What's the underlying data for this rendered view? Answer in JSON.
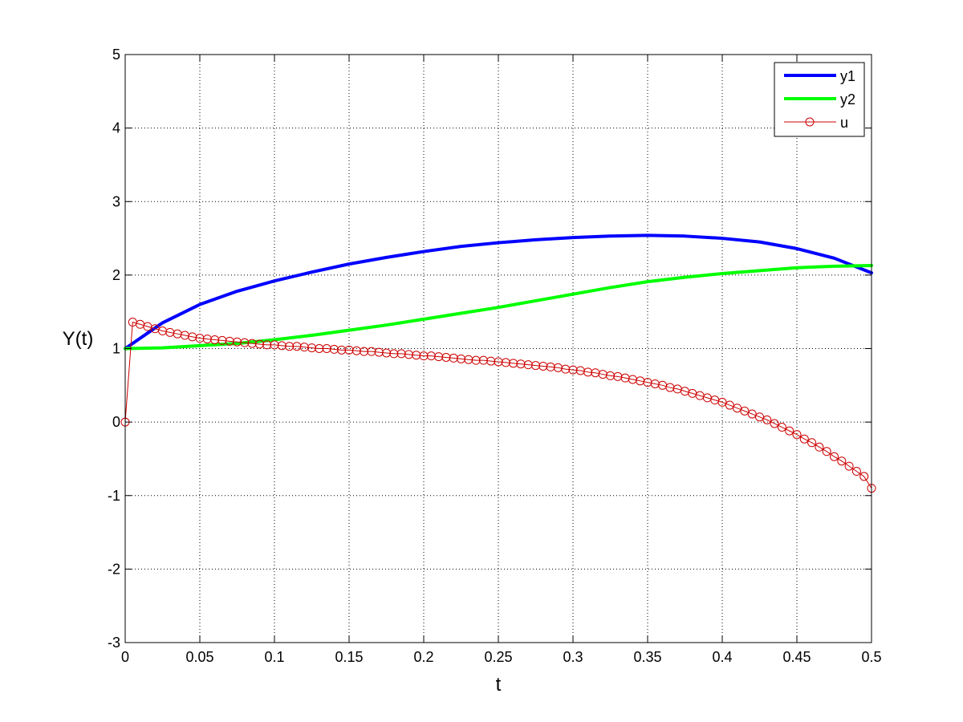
{
  "chart_data": {
    "type": "line",
    "title": "",
    "xlabel": "t",
    "ylabel": "Y(t)",
    "xlim": [
      0,
      0.5
    ],
    "ylim": [
      -3,
      5
    ],
    "xticks": [
      0,
      0.05,
      0.1,
      0.15,
      0.2,
      0.25,
      0.3,
      0.35,
      0.4,
      0.45,
      0.5
    ],
    "xtick_labels": [
      "0",
      "0.05",
      "0.1",
      "0.15",
      "0.2",
      "0.25",
      "0.3",
      "0.35",
      "0.4",
      "0.45",
      "0.5"
    ],
    "yticks": [
      -3,
      -2,
      -1,
      0,
      1,
      2,
      3,
      4,
      5
    ],
    "ytick_labels": [
      "-3",
      "-2",
      "-1",
      "0",
      "1",
      "2",
      "3",
      "4",
      "5"
    ],
    "grid": true,
    "legend_position": "top-right",
    "series": [
      {
        "name": "y1",
        "color": "#0000ff",
        "marker": "none",
        "x": [
          0,
          0.025,
          0.05,
          0.075,
          0.1,
          0.125,
          0.15,
          0.175,
          0.2,
          0.225,
          0.25,
          0.275,
          0.3,
          0.325,
          0.35,
          0.375,
          0.4,
          0.425,
          0.45,
          0.475,
          0.5
        ],
        "y": [
          1.0,
          1.35,
          1.6,
          1.78,
          1.92,
          2.04,
          2.15,
          2.24,
          2.32,
          2.39,
          2.44,
          2.48,
          2.51,
          2.53,
          2.54,
          2.53,
          2.5,
          2.45,
          2.36,
          2.23,
          2.03
        ]
      },
      {
        "name": "y2",
        "color": "#00ff00",
        "marker": "none",
        "x": [
          0,
          0.025,
          0.05,
          0.075,
          0.1,
          0.125,
          0.15,
          0.175,
          0.2,
          0.225,
          0.25,
          0.275,
          0.3,
          0.325,
          0.35,
          0.375,
          0.4,
          0.425,
          0.45,
          0.475,
          0.5
        ],
        "y": [
          1.0,
          1.01,
          1.04,
          1.07,
          1.12,
          1.18,
          1.25,
          1.32,
          1.4,
          1.48,
          1.56,
          1.65,
          1.74,
          1.83,
          1.91,
          1.97,
          2.02,
          2.06,
          2.1,
          2.12,
          2.13
        ]
      },
      {
        "name": "u",
        "color": "#cc0000",
        "marker": "circle",
        "x": [
          0,
          0.005,
          0.01,
          0.015,
          0.02,
          0.025,
          0.03,
          0.035,
          0.04,
          0.045,
          0.05,
          0.055,
          0.06,
          0.065,
          0.07,
          0.075,
          0.08,
          0.085,
          0.09,
          0.095,
          0.1,
          0.105,
          0.11,
          0.115,
          0.12,
          0.125,
          0.13,
          0.135,
          0.14,
          0.145,
          0.15,
          0.155,
          0.16,
          0.165,
          0.17,
          0.175,
          0.18,
          0.185,
          0.19,
          0.195,
          0.2,
          0.205,
          0.21,
          0.215,
          0.22,
          0.225,
          0.23,
          0.235,
          0.24,
          0.245,
          0.25,
          0.255,
          0.26,
          0.265,
          0.27,
          0.275,
          0.28,
          0.285,
          0.29,
          0.295,
          0.3,
          0.305,
          0.31,
          0.315,
          0.32,
          0.325,
          0.33,
          0.335,
          0.34,
          0.345,
          0.35,
          0.355,
          0.36,
          0.365,
          0.37,
          0.375,
          0.38,
          0.385,
          0.39,
          0.395,
          0.4,
          0.405,
          0.41,
          0.415,
          0.42,
          0.425,
          0.43,
          0.435,
          0.44,
          0.445,
          0.45,
          0.455,
          0.46,
          0.465,
          0.47,
          0.475,
          0.48,
          0.485,
          0.49,
          0.495,
          0.5
        ],
        "y": [
          0.0,
          1.36,
          1.33,
          1.3,
          1.27,
          1.24,
          1.22,
          1.2,
          1.18,
          1.16,
          1.14,
          1.13,
          1.12,
          1.11,
          1.1,
          1.09,
          1.08,
          1.07,
          1.06,
          1.05,
          1.05,
          1.04,
          1.03,
          1.03,
          1.02,
          1.01,
          1.0,
          1.0,
          0.99,
          0.98,
          0.98,
          0.97,
          0.96,
          0.96,
          0.95,
          0.94,
          0.93,
          0.93,
          0.92,
          0.91,
          0.9,
          0.9,
          0.89,
          0.88,
          0.87,
          0.86,
          0.85,
          0.84,
          0.84,
          0.83,
          0.82,
          0.81,
          0.8,
          0.79,
          0.78,
          0.77,
          0.76,
          0.75,
          0.74,
          0.72,
          0.71,
          0.7,
          0.68,
          0.67,
          0.65,
          0.63,
          0.62,
          0.6,
          0.58,
          0.56,
          0.54,
          0.52,
          0.5,
          0.47,
          0.45,
          0.42,
          0.39,
          0.36,
          0.33,
          0.3,
          0.27,
          0.23,
          0.19,
          0.15,
          0.11,
          0.07,
          0.03,
          -0.02,
          -0.07,
          -0.12,
          -0.17,
          -0.23,
          -0.28,
          -0.34,
          -0.4,
          -0.47,
          -0.53,
          -0.6,
          -0.67,
          -0.74,
          -0.9
        ]
      }
    ]
  }
}
